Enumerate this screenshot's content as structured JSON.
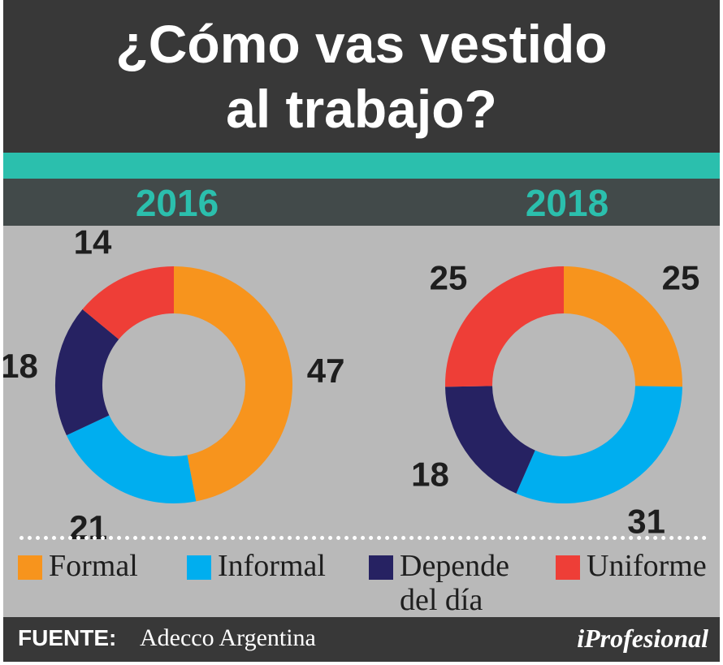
{
  "header": {
    "title_line1": "¿Cómo vas vestido",
    "title_line2": "al trabajo?"
  },
  "colors": {
    "Formal": "#f7941d",
    "Informal": "#00aeef",
    "Depende del día": "#262262",
    "Uniforme": "#ee3e37",
    "accent": "#2bbfad",
    "dark": "#383838"
  },
  "chart_data": [
    {
      "type": "pie",
      "title": "2016",
      "categories": [
        "Formal",
        "Informal",
        "Depende del día",
        "Uniforme"
      ],
      "values": [
        47,
        21,
        18,
        14
      ]
    },
    {
      "type": "pie",
      "title": "2018",
      "categories": [
        "Formal",
        "Informal",
        "Depende del día",
        "Uniforme"
      ],
      "values": [
        25,
        31,
        18,
        25
      ]
    }
  ],
  "legend": {
    "placement": "bottom",
    "items": [
      {
        "label": "Formal"
      },
      {
        "label": "Informal"
      },
      {
        "label_line1": "Depende",
        "label_line2": "del día"
      },
      {
        "label": "Uniforme"
      }
    ]
  },
  "footer": {
    "source_label": "FUENTE:",
    "source_name": "Adecco Argentina",
    "logo": "iProfesional"
  }
}
